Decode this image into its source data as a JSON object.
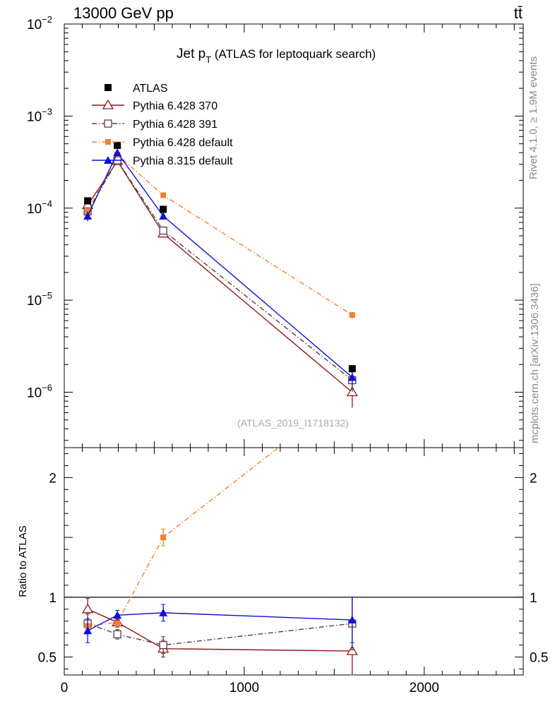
{
  "header": {
    "left": "13000 GeV pp",
    "right": "tt̄"
  },
  "title": {
    "main": "Jet p",
    "sub": "T",
    "paren": " (ATLAS for leptoquark search)"
  },
  "side": {
    "rivet": "Rivet 4.1.0, ≥ 1.9M events",
    "mcplots": "mcplots.cern.ch [arXiv:1306.3436]"
  },
  "analysis_label": "(ATLAS_2019_I1718132)",
  "colors": {
    "atlas": "#000000",
    "py370": "#8b1a1a",
    "py391": "#5e3a46",
    "py6def": "#f08030",
    "py8def": "#1010d8"
  },
  "chart_data": [
    {
      "type": "line",
      "scale": "log",
      "title": "Jet pT (ATLAS for leptoquark search)",
      "xlim": [
        0,
        2550
      ],
      "ylim": [
        2.5e-07,
        0.01
      ],
      "ytick_labels": [
        {
          "v": 1e-06,
          "m": "10",
          "e": "−6"
        },
        {
          "v": 1e-05,
          "m": "10",
          "e": "−5"
        },
        {
          "v": 0.0001,
          "m": "10",
          "e": "−4"
        },
        {
          "v": 0.001,
          "m": "10",
          "e": "−3"
        },
        {
          "v": 0.01,
          "m": "10",
          "e": "−2"
        }
      ],
      "series": [
        {
          "key": "atlas",
          "name": "ATLAS",
          "marker": "square-filled",
          "line": "none",
          "x": [
            130,
            295,
            550,
            1600
          ],
          "y": [
            0.00012,
            0.00048,
            9.7e-05,
            1.8e-06
          ],
          "err": [
            0.06,
            0.04,
            0.05,
            0.05
          ]
        },
        {
          "key": "py370",
          "name": "Pythia 6.428 370",
          "marker": "triangle-open",
          "line": "solid",
          "x": [
            130,
            295,
            550,
            1600
          ],
          "y": [
            0.000108,
            0.000325,
            5.3e-05,
            1e-06
          ],
          "err": [
            0.1,
            0.04,
            0.08,
            0.32
          ]
        },
        {
          "key": "py391",
          "name": "Pythia 6.428 391",
          "marker": "square-open",
          "line": "dashdot",
          "x": [
            130,
            295,
            550,
            1600
          ],
          "y": [
            9.2e-05,
            0.00033,
            5.7e-05,
            1.35e-06
          ],
          "err": [
            0.1,
            0.04,
            0.08,
            0.25
          ]
        },
        {
          "key": "py6def",
          "name": "Pythia 6.428 default",
          "marker": "square-filled-small",
          "line": "dashdot-orange",
          "x": [
            130,
            295,
            550,
            1600
          ],
          "y": [
            9.2e-05,
            0.00038,
            0.000138,
            6.9e-06
          ],
          "err": [
            0.08,
            0.03,
            0.05,
            0.08
          ]
        },
        {
          "key": "py8def",
          "name": "Pythia 8.315 default",
          "marker": "triangle-filled",
          "line": "solid",
          "x": [
            130,
            295,
            550,
            1600
          ],
          "y": [
            8.2e-05,
            0.0004,
            8.2e-05,
            1.45e-06
          ],
          "err": [
            0.12,
            0.04,
            0.06,
            0.18
          ]
        }
      ]
    },
    {
      "type": "line",
      "scale": "linear",
      "ylabel": "Ratio to ATLAS",
      "xlim": [
        0,
        2550
      ],
      "ylim": [
        0.35,
        2.25
      ],
      "ytick_labels": [
        0.5,
        1,
        2
      ],
      "xtick_labels": [
        0,
        1000,
        2000
      ],
      "reference": 1,
      "series": [
        {
          "key": "py370",
          "x": [
            130,
            295,
            550,
            1600
          ],
          "y": [
            0.9,
            0.79,
            0.57,
            0.55
          ],
          "err": [
            0.09,
            0.04,
            0.07,
            0.45
          ]
        },
        {
          "key": "py391",
          "x": [
            130,
            295,
            550,
            1600
          ],
          "y": [
            0.78,
            0.69,
            0.6,
            0.78
          ],
          "err": [
            0.08,
            0.04,
            0.07,
            0.22
          ]
        },
        {
          "key": "py6def",
          "x": [
            130,
            295,
            550,
            1190
          ],
          "y": [
            0.76,
            0.79,
            1.5,
            2.25
          ],
          "err": [
            0.06,
            0.03,
            0.07,
            0
          ]
        },
        {
          "key": "py8def",
          "x": [
            130,
            295,
            550,
            1600
          ],
          "y": [
            0.72,
            0.85,
            0.87,
            0.81
          ],
          "err": [
            0.1,
            0.04,
            0.07,
            0.19
          ]
        }
      ]
    }
  ]
}
